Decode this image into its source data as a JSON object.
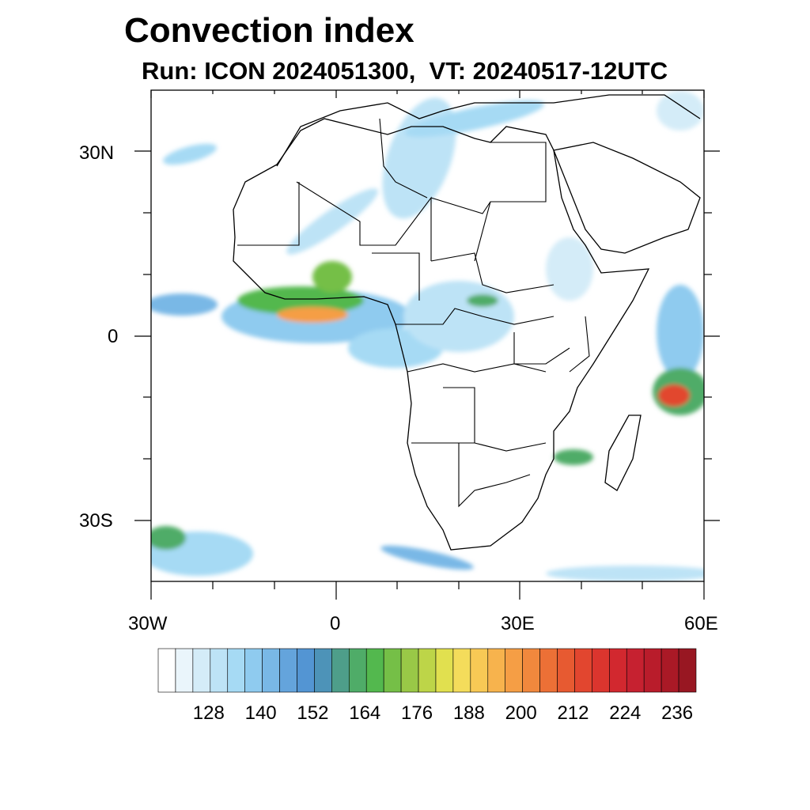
{
  "title": "Convection index",
  "subtitle": "Run: ICON 2024051300,  VT: 20240517-12UTC",
  "axes": {
    "lat_labels": [
      "30N",
      "0",
      "30S"
    ],
    "lon_labels": [
      "30W",
      "0",
      "30E",
      "60E"
    ]
  },
  "colorbar": {
    "tick_labels": [
      "128",
      "140",
      "152",
      "164",
      "176",
      "188",
      "200",
      "212",
      "224",
      "236"
    ],
    "levels": [
      116,
      120,
      124,
      128,
      132,
      136,
      140,
      144,
      148,
      152,
      156,
      160,
      164,
      168,
      172,
      176,
      180,
      184,
      188,
      192,
      196,
      200,
      204,
      208,
      212,
      216,
      220,
      224,
      228,
      232,
      236,
      240
    ],
    "colors": [
      "#ffffff",
      "#eaf5fb",
      "#d4ecf8",
      "#bde3f6",
      "#a6daf4",
      "#8fcbef",
      "#79b8e6",
      "#64a4dc",
      "#5395d3",
      "#4d93b8",
      "#4e9e8a",
      "#4fac68",
      "#53b84e",
      "#75bf47",
      "#99c847",
      "#bdd548",
      "#e1e04f",
      "#f4dc5b",
      "#f8c955",
      "#f7b34d",
      "#f59e45",
      "#f1883d",
      "#ec7036",
      "#e75a31",
      "#e2462f",
      "#db352e",
      "#d2282f",
      "#c62130",
      "#b91c2b",
      "#aa1926",
      "#981722"
    ]
  },
  "map": {
    "lon_range": [
      -30,
      60
    ],
    "lat_range": [
      -40,
      40
    ]
  }
}
